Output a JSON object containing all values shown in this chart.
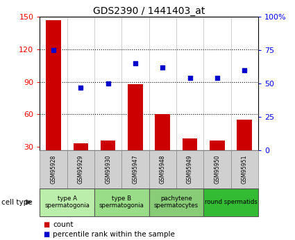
{
  "title": "GDS2390 / 1441403_at",
  "samples": [
    "GSM95928",
    "GSM95929",
    "GSM95930",
    "GSM95947",
    "GSM95948",
    "GSM95949",
    "GSM95950",
    "GSM95951"
  ],
  "counts": [
    147,
    33,
    36,
    88,
    60,
    38,
    36,
    55
  ],
  "percentile_ranks": [
    75,
    47,
    50,
    65,
    62,
    54,
    54,
    60
  ],
  "ylim_left": [
    27,
    150
  ],
  "ylim_right": [
    0,
    100
  ],
  "yticks_left": [
    30,
    60,
    90,
    120,
    150
  ],
  "yticks_right": [
    0,
    25,
    50,
    75,
    100
  ],
  "ytick_labels_right": [
    "0",
    "25",
    "50",
    "75",
    "100%"
  ],
  "bar_color": "#cc0000",
  "dot_color": "#0000cc",
  "gridline_ticks": [
    60,
    90,
    120
  ],
  "cell_type_groups": [
    {
      "label": "type A\nspermatogonia",
      "indices": [
        0,
        1
      ],
      "color": "#bbeeaa"
    },
    {
      "label": "type B\nspermatogonia",
      "indices": [
        2,
        3
      ],
      "color": "#99dd88"
    },
    {
      "label": "pachytene\nspermatocytes",
      "indices": [
        4,
        5
      ],
      "color": "#88cc77"
    },
    {
      "label": "round spermatids",
      "indices": [
        6,
        7
      ],
      "color": "#33bb33"
    }
  ],
  "cell_type_label": "cell type",
  "legend_count_label": "count",
  "legend_pct_label": "percentile rank within the sample",
  "sample_box_color": "#d0d0d0",
  "bar_width": 0.55
}
